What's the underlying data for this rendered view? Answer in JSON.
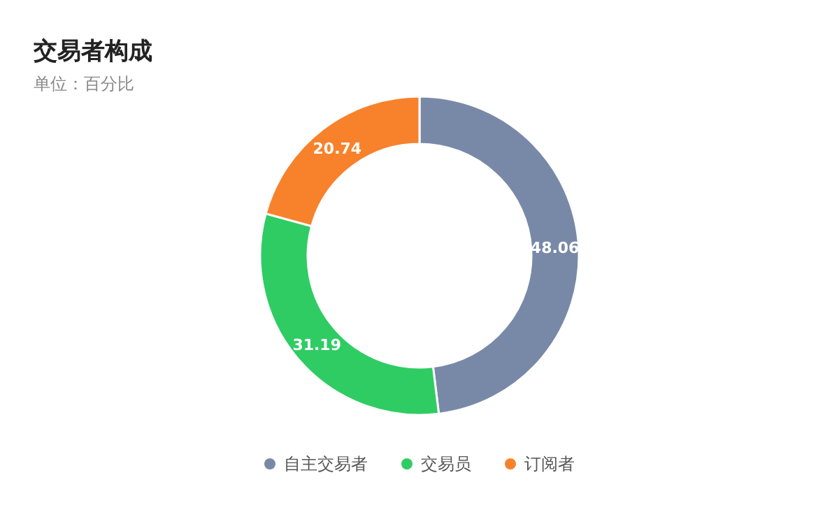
{
  "chart_data": {
    "type": "donut",
    "title": "交易者构成",
    "subtitle": "单位：百分比",
    "categories": [
      "自主交易者",
      "交易员",
      "订阅者"
    ],
    "values": [
      48.06,
      31.19,
      20.74
    ],
    "colors": [
      "#7889a8",
      "#2fcc63",
      "#f7822b"
    ],
    "data_labels": true,
    "legend": "bottom"
  }
}
